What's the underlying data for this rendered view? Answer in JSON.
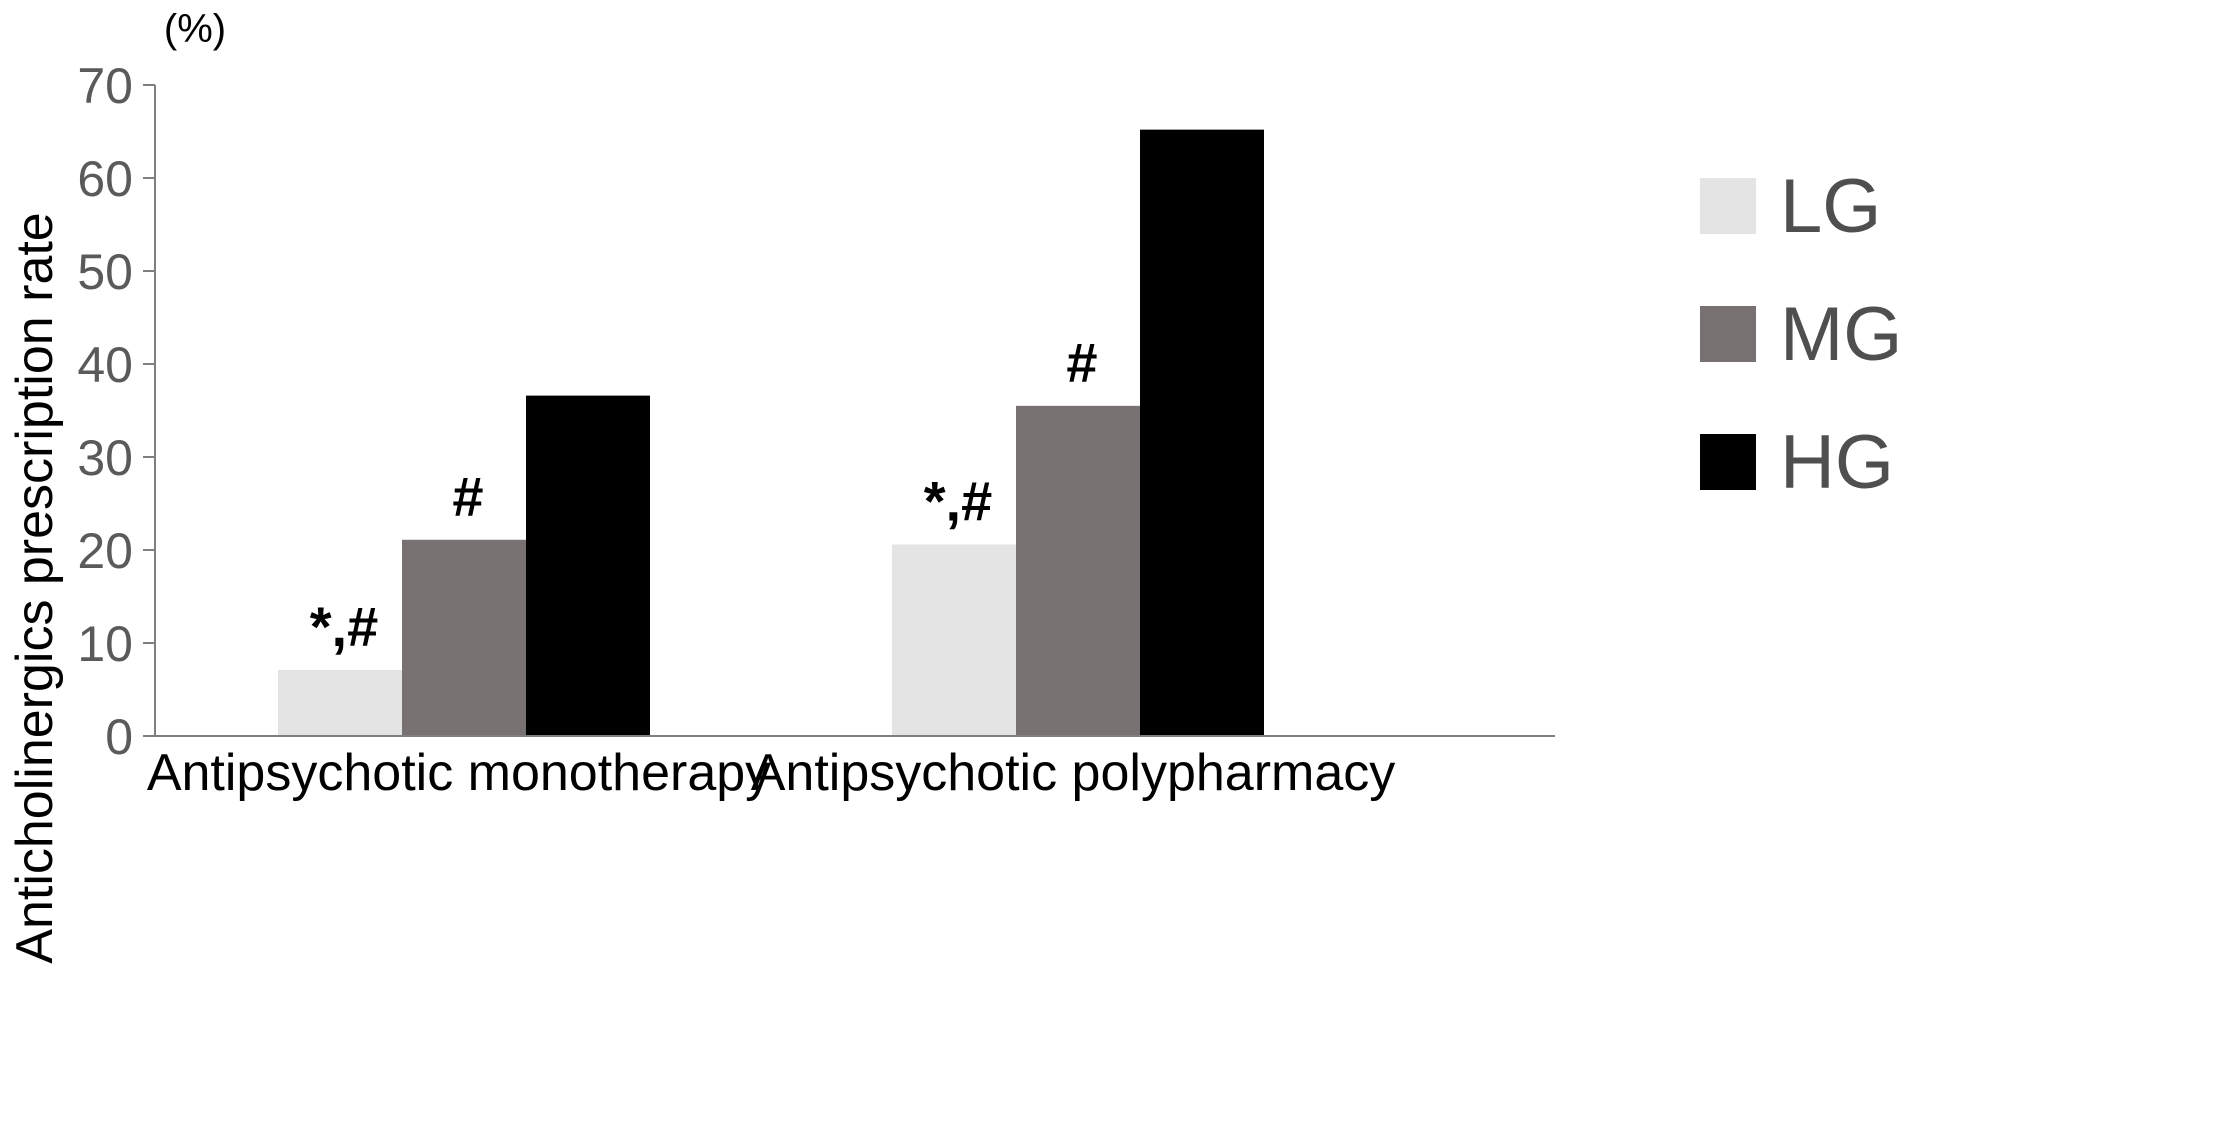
{
  "chart_data": {
    "type": "bar",
    "unit_label": "(%)",
    "ylabel": "Anticholinergics prescription rate",
    "xlabel": "",
    "ylim": [
      0,
      70
    ],
    "yticks": [
      0,
      10,
      20,
      30,
      40,
      50,
      60,
      70
    ],
    "categories": [
      "Antipsychotic monotherapy",
      "Antipsychotic polypharmacy"
    ],
    "series": [
      {
        "name": "LG",
        "color": "#e4e4e4",
        "values": [
          7.1,
          20.6
        ],
        "annotations": [
          "*,#",
          "*,#"
        ]
      },
      {
        "name": "MG",
        "color": "#777171",
        "values": [
          21.1,
          35.5
        ],
        "annotations": [
          "#",
          "#"
        ]
      },
      {
        "name": "HG",
        "color": "#000000",
        "values": [
          36.6,
          65.2
        ],
        "annotations": [
          "",
          ""
        ]
      }
    ],
    "legend_position": "right",
    "grid": false
  }
}
